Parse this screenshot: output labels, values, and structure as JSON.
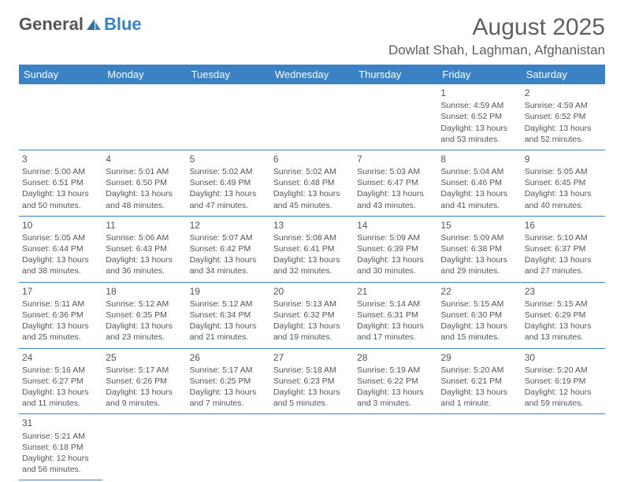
{
  "logo": {
    "part1": "General",
    "part2": "Blue"
  },
  "header": {
    "month_title": "August 2025",
    "location": "Dowlat Shah, Laghman, Afghanistan"
  },
  "styling": {
    "header_bg": "#3b82c4",
    "header_fg": "#ffffff",
    "border_color": "#3b82c4",
    "text_color": "#555555",
    "page_bg": "#ffffff"
  },
  "day_headers": [
    "Sunday",
    "Monday",
    "Tuesday",
    "Wednesday",
    "Thursday",
    "Friday",
    "Saturday"
  ],
  "weeks": [
    [
      null,
      null,
      null,
      null,
      null,
      {
        "d": "1",
        "sr": "4:59 AM",
        "ss": "6:52 PM",
        "dl": "13 hours and 53 minutes."
      },
      {
        "d": "2",
        "sr": "4:59 AM",
        "ss": "6:52 PM",
        "dl": "13 hours and 52 minutes."
      }
    ],
    [
      {
        "d": "3",
        "sr": "5:00 AM",
        "ss": "6:51 PM",
        "dl": "13 hours and 50 minutes."
      },
      {
        "d": "4",
        "sr": "5:01 AM",
        "ss": "6:50 PM",
        "dl": "13 hours and 48 minutes."
      },
      {
        "d": "5",
        "sr": "5:02 AM",
        "ss": "6:49 PM",
        "dl": "13 hours and 47 minutes."
      },
      {
        "d": "6",
        "sr": "5:02 AM",
        "ss": "6:48 PM",
        "dl": "13 hours and 45 minutes."
      },
      {
        "d": "7",
        "sr": "5:03 AM",
        "ss": "6:47 PM",
        "dl": "13 hours and 43 minutes."
      },
      {
        "d": "8",
        "sr": "5:04 AM",
        "ss": "6:46 PM",
        "dl": "13 hours and 41 minutes."
      },
      {
        "d": "9",
        "sr": "5:05 AM",
        "ss": "6:45 PM",
        "dl": "13 hours and 40 minutes."
      }
    ],
    [
      {
        "d": "10",
        "sr": "5:05 AM",
        "ss": "6:44 PM",
        "dl": "13 hours and 38 minutes."
      },
      {
        "d": "11",
        "sr": "5:06 AM",
        "ss": "6:43 PM",
        "dl": "13 hours and 36 minutes."
      },
      {
        "d": "12",
        "sr": "5:07 AM",
        "ss": "6:42 PM",
        "dl": "13 hours and 34 minutes."
      },
      {
        "d": "13",
        "sr": "5:08 AM",
        "ss": "6:41 PM",
        "dl": "13 hours and 32 minutes."
      },
      {
        "d": "14",
        "sr": "5:09 AM",
        "ss": "6:39 PM",
        "dl": "13 hours and 30 minutes."
      },
      {
        "d": "15",
        "sr": "5:09 AM",
        "ss": "6:38 PM",
        "dl": "13 hours and 29 minutes."
      },
      {
        "d": "16",
        "sr": "5:10 AM",
        "ss": "6:37 PM",
        "dl": "13 hours and 27 minutes."
      }
    ],
    [
      {
        "d": "17",
        "sr": "5:11 AM",
        "ss": "6:36 PM",
        "dl": "13 hours and 25 minutes."
      },
      {
        "d": "18",
        "sr": "5:12 AM",
        "ss": "6:35 PM",
        "dl": "13 hours and 23 minutes."
      },
      {
        "d": "19",
        "sr": "5:12 AM",
        "ss": "6:34 PM",
        "dl": "13 hours and 21 minutes."
      },
      {
        "d": "20",
        "sr": "5:13 AM",
        "ss": "6:32 PM",
        "dl": "13 hours and 19 minutes."
      },
      {
        "d": "21",
        "sr": "5:14 AM",
        "ss": "6:31 PM",
        "dl": "13 hours and 17 minutes."
      },
      {
        "d": "22",
        "sr": "5:15 AM",
        "ss": "6:30 PM",
        "dl": "13 hours and 15 minutes."
      },
      {
        "d": "23",
        "sr": "5:15 AM",
        "ss": "6:29 PM",
        "dl": "13 hours and 13 minutes."
      }
    ],
    [
      {
        "d": "24",
        "sr": "5:16 AM",
        "ss": "6:27 PM",
        "dl": "13 hours and 11 minutes."
      },
      {
        "d": "25",
        "sr": "5:17 AM",
        "ss": "6:26 PM",
        "dl": "13 hours and 9 minutes."
      },
      {
        "d": "26",
        "sr": "5:17 AM",
        "ss": "6:25 PM",
        "dl": "13 hours and 7 minutes."
      },
      {
        "d": "27",
        "sr": "5:18 AM",
        "ss": "6:23 PM",
        "dl": "13 hours and 5 minutes."
      },
      {
        "d": "28",
        "sr": "5:19 AM",
        "ss": "6:22 PM",
        "dl": "13 hours and 3 minutes."
      },
      {
        "d": "29",
        "sr": "5:20 AM",
        "ss": "6:21 PM",
        "dl": "13 hours and 1 minute."
      },
      {
        "d": "30",
        "sr": "5:20 AM",
        "ss": "6:19 PM",
        "dl": "12 hours and 59 minutes."
      }
    ],
    [
      {
        "d": "31",
        "sr": "5:21 AM",
        "ss": "6:18 PM",
        "dl": "12 hours and 56 minutes."
      },
      null,
      null,
      null,
      null,
      null,
      null
    ]
  ],
  "labels": {
    "sunrise_prefix": "Sunrise: ",
    "sunset_prefix": "Sunset: ",
    "daylight_prefix": "Daylight: "
  }
}
